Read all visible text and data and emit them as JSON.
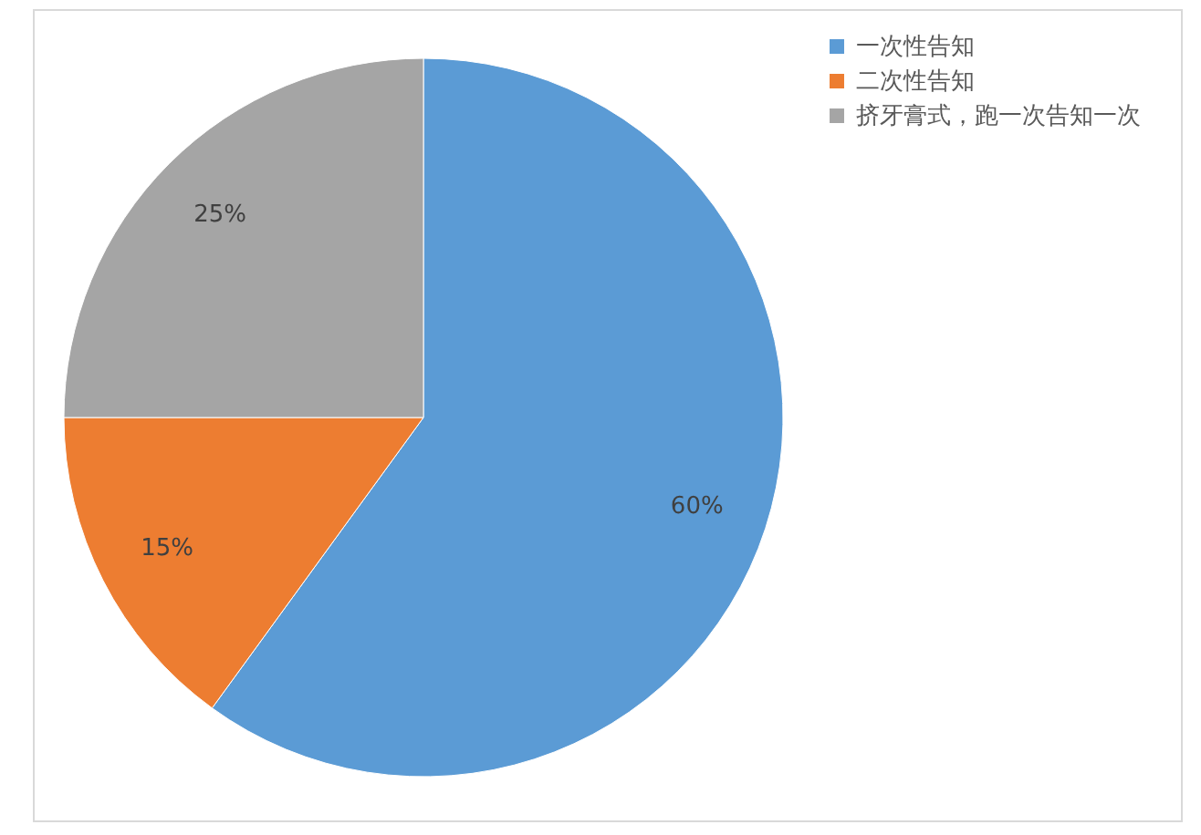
{
  "chart_data": {
    "type": "pie",
    "categories": [
      "一次性告知",
      "二次性告知",
      "挤牙膏式，跑一次告知一次"
    ],
    "values": [
      60,
      15,
      25
    ],
    "colors": [
      "#5b9bd5",
      "#ed7d31",
      "#a5a5a5"
    ],
    "value_labels": [
      "60%",
      "15%",
      "25%"
    ],
    "legend": "right"
  }
}
